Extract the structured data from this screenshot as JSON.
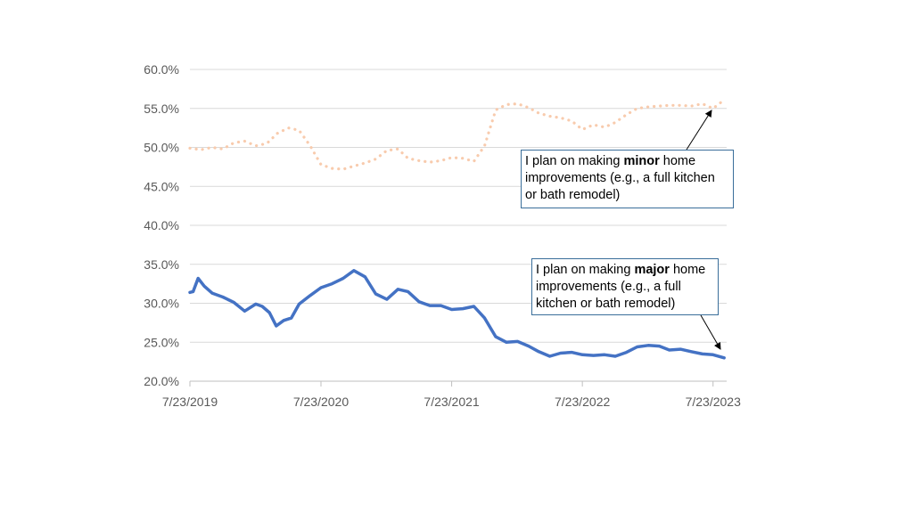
{
  "chart_data": {
    "type": "line",
    "title": "",
    "xlabel": "",
    "ylabel": "",
    "x_tick_labels": [
      "7/23/2019",
      "7/23/2020",
      "7/23/2021",
      "7/23/2022",
      "7/23/2023"
    ],
    "y_tick_labels": [
      "20.0%",
      "25.0%",
      "30.0%",
      "35.0%",
      "40.0%",
      "45.0%",
      "50.0%",
      "55.0%",
      "60.0%"
    ],
    "ylim": [
      20,
      60
    ],
    "xlim": [
      "2019-07-23",
      "2023-08-30"
    ],
    "grid": "horizontal",
    "series": [
      {
        "name": "I plan on making minor home improvements (e.g., a full kitchen or bath remodel)",
        "style": "dotted",
        "color": "#f8cbad",
        "x": [
          "2019-07-23",
          "2019-08-23",
          "2019-09-23",
          "2019-10-23",
          "2019-11-23",
          "2019-12-23",
          "2020-01-23",
          "2020-02-23",
          "2020-03-23",
          "2020-04-23",
          "2020-05-23",
          "2020-06-23",
          "2020-07-23",
          "2020-08-23",
          "2020-09-23",
          "2020-10-23",
          "2020-11-23",
          "2020-12-23",
          "2021-01-23",
          "2021-02-23",
          "2021-03-23",
          "2021-04-23",
          "2021-05-23",
          "2021-06-23",
          "2021-07-23",
          "2021-08-23",
          "2021-09-23",
          "2021-10-23",
          "2021-11-23",
          "2021-12-23",
          "2022-01-23",
          "2022-02-23",
          "2022-03-23",
          "2022-04-23",
          "2022-05-23",
          "2022-06-23",
          "2022-07-23",
          "2022-08-23",
          "2022-09-23",
          "2022-10-23",
          "2022-11-23",
          "2022-12-23",
          "2023-01-23",
          "2023-02-23",
          "2023-03-23",
          "2023-04-23",
          "2023-05-23",
          "2023-06-23",
          "2023-07-23",
          "2023-08-23"
        ],
        "values": [
          49.9,
          49.7,
          50.0,
          49.8,
          50.6,
          50.8,
          50.2,
          50.5,
          51.8,
          52.5,
          52.2,
          50.2,
          47.8,
          47.3,
          47.2,
          47.6,
          48.0,
          48.5,
          49.6,
          49.8,
          48.6,
          48.3,
          48.1,
          48.3,
          48.7,
          48.6,
          48.2,
          50.2,
          54.8,
          55.5,
          55.6,
          55.1,
          54.4,
          54.0,
          53.8,
          53.4,
          52.3,
          52.9,
          52.6,
          53.2,
          54.2,
          55.0,
          55.2,
          55.3,
          55.4,
          55.4,
          55.3,
          55.6,
          55.0,
          56.1
        ]
      },
      {
        "name": "I plan on making major home improvements (e.g., a full kitchen or bath remodel)",
        "style": "solid",
        "color": "#4472c4",
        "x": [
          "2019-07-23",
          "2019-08-01",
          "2019-08-15",
          "2019-09-01",
          "2019-09-23",
          "2019-10-23",
          "2019-11-23",
          "2019-12-23",
          "2020-01-23",
          "2020-02-10",
          "2020-03-01",
          "2020-03-20",
          "2020-04-10",
          "2020-05-01",
          "2020-05-23",
          "2020-06-23",
          "2020-07-23",
          "2020-08-23",
          "2020-09-23",
          "2020-10-23",
          "2020-11-23",
          "2020-12-23",
          "2021-01-23",
          "2021-02-23",
          "2021-03-23",
          "2021-04-23",
          "2021-05-23",
          "2021-06-23",
          "2021-07-23",
          "2021-08-23",
          "2021-09-23",
          "2021-10-23",
          "2021-11-23",
          "2021-12-23",
          "2022-01-23",
          "2022-02-23",
          "2022-03-23",
          "2022-04-23",
          "2022-05-23",
          "2022-06-23",
          "2022-07-23",
          "2022-08-23",
          "2022-09-23",
          "2022-10-23",
          "2022-11-23",
          "2022-12-23",
          "2023-01-23",
          "2023-02-23",
          "2023-03-23",
          "2023-04-23",
          "2023-05-23",
          "2023-06-23",
          "2023-07-23",
          "2023-08-23"
        ],
        "values": [
          31.4,
          31.5,
          33.2,
          32.2,
          31.3,
          30.8,
          30.1,
          29.0,
          29.9,
          29.6,
          28.8,
          27.1,
          27.8,
          28.1,
          29.9,
          31.0,
          32.0,
          32.5,
          33.2,
          34.2,
          33.4,
          31.2,
          30.5,
          31.8,
          31.5,
          30.2,
          29.7,
          29.7,
          29.2,
          29.3,
          29.6,
          28.1,
          25.7,
          25.0,
          25.1,
          24.5,
          23.8,
          23.2,
          23.6,
          23.7,
          23.4,
          23.3,
          23.4,
          23.2,
          23.7,
          24.4,
          24.6,
          24.5,
          24.0,
          24.1,
          23.8,
          23.5,
          23.4,
          23.0
        ]
      }
    ],
    "annotations": {
      "minor": {
        "prefix": "I plan on making",
        "bold": "minor",
        "suffix": "home improvements (e.g., a full kitchen or bath remodel)"
      },
      "major": {
        "prefix": "I plan on making",
        "bold": "major",
        "suffix": "home improvements (e.g., a full kitchen or bath remodel)"
      }
    }
  }
}
